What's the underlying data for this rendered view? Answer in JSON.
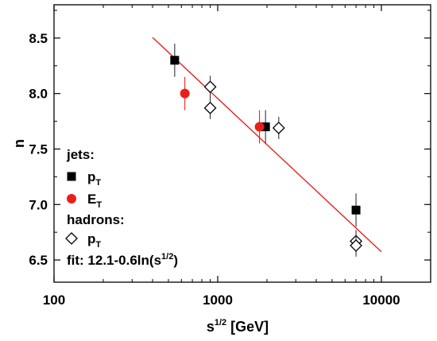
{
  "chart_data": {
    "type": "scatter",
    "xlabel": "s",
    "xlabel_sup": "1/2",
    "xlabel_unit": " [GeV]",
    "ylabel": "n",
    "x_scale": "log",
    "xlim": [
      100,
      20000
    ],
    "ylim": [
      6.3,
      8.8
    ],
    "x_ticks": [
      100,
      1000,
      10000
    ],
    "x_tick_labels": [
      "100",
      "1000",
      "10000"
    ],
    "y_ticks": [
      6.5,
      7.0,
      7.5,
      8.0,
      8.5
    ],
    "y_tick_labels": [
      "6.5",
      "7.0",
      "7.5",
      "8.0",
      "8.5"
    ],
    "grid": false,
    "series": [
      {
        "group": "jets",
        "name": "p",
        "name_sub": "T",
        "marker": "square",
        "color": "#000000",
        "points": [
          {
            "x": 546,
            "y": 8.3,
            "err": 0.15
          },
          {
            "x": 1960,
            "y": 7.7,
            "err": 0.15
          },
          {
            "x": 7000,
            "y": 6.95,
            "err": 0.15
          }
        ]
      },
      {
        "group": "jets",
        "name": "E",
        "name_sub": "T",
        "marker": "circle",
        "color": "#e8201c",
        "points": [
          {
            "x": 630,
            "y": 8.0,
            "err": 0.15
          },
          {
            "x": 1800,
            "y": 7.7,
            "err": 0.15
          }
        ]
      },
      {
        "group": "hadrons",
        "name": "p",
        "name_sub": "T",
        "marker": "diamond-open",
        "color": "#000000",
        "points": [
          {
            "x": 900,
            "y": 8.06,
            "err": 0.1
          },
          {
            "x": 900,
            "y": 7.87,
            "err": 0.1
          },
          {
            "x": 2360,
            "y": 7.69,
            "err": 0.1
          },
          {
            "x": 7000,
            "y": 6.67,
            "err": 0.1
          },
          {
            "x": 7000,
            "y": 6.63,
            "err": 0.1
          }
        ]
      }
    ],
    "fit": {
      "label": "fit: 12.1-0.6ln(s",
      "label_sup": "1/2",
      "label_end": ")",
      "a": 12.1,
      "b": -0.6,
      "x_range": [
        400,
        10000
      ],
      "color": "#e8201c"
    },
    "legend": {
      "placement": "bottom-left",
      "groups": [
        "jets:",
        "hadrons:"
      ]
    }
  }
}
